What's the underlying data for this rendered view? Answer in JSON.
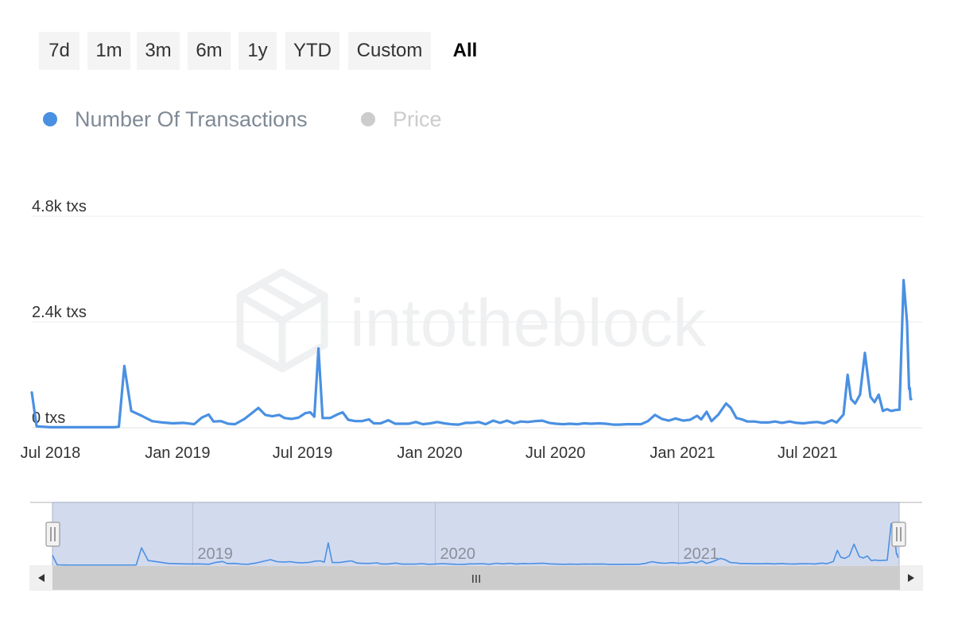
{
  "range_selector": {
    "buttons": [
      "7d",
      "1m",
      "3m",
      "6m",
      "1y",
      "YTD",
      "Custom",
      "All"
    ],
    "active": "All"
  },
  "legend": [
    {
      "label": "Number Of Transactions",
      "color": "#4a90e2",
      "active": true
    },
    {
      "label": "Price",
      "color": "#cccccc",
      "active": false
    }
  ],
  "watermark": "intotheblock",
  "navigator": {
    "labels": [
      "2019",
      "2020",
      "2021"
    ],
    "scroll_grip": "III"
  },
  "chart_data": {
    "type": "line",
    "x_axis": {
      "type": "datetime",
      "range": [
        "2018-06-04",
        "2021-11-29"
      ],
      "tick_labels": [
        "Jul 2018",
        "Jan 2019",
        "Jul 2019",
        "Jan 2020",
        "Jul 2020",
        "Jan 2021",
        "Jul 2021"
      ]
    },
    "y_axis": {
      "range": [
        0,
        4800
      ],
      "tick_values": [
        0,
        2400,
        4800
      ],
      "tick_labels": [
        "0 txs",
        "2.4k txs",
        "4.8k txs"
      ]
    },
    "grid": {
      "horizontal": true,
      "vertical": false
    },
    "series": [
      {
        "name": "Number Of Transactions",
        "color": "#4a90e2",
        "points": [
          [
            "2018-06-04",
            800
          ],
          [
            "2018-06-11",
            30
          ],
          [
            "2018-07-01",
            10
          ],
          [
            "2018-08-01",
            10
          ],
          [
            "2018-09-01",
            10
          ],
          [
            "2018-10-01",
            10
          ],
          [
            "2018-10-08",
            20
          ],
          [
            "2018-10-16",
            1400
          ],
          [
            "2018-10-26",
            380
          ],
          [
            "2018-11-10",
            270
          ],
          [
            "2018-11-25",
            150
          ],
          [
            "2018-12-10",
            120
          ],
          [
            "2018-12-25",
            100
          ],
          [
            "2019-01-10",
            110
          ],
          [
            "2019-01-25",
            80
          ],
          [
            "2019-02-05",
            230
          ],
          [
            "2019-02-15",
            300
          ],
          [
            "2019-02-22",
            140
          ],
          [
            "2019-03-05",
            150
          ],
          [
            "2019-03-15",
            90
          ],
          [
            "2019-03-25",
            80
          ],
          [
            "2019-04-08",
            200
          ],
          [
            "2019-04-20",
            350
          ],
          [
            "2019-04-28",
            450
          ],
          [
            "2019-05-08",
            290
          ],
          [
            "2019-05-18",
            260
          ],
          [
            "2019-05-28",
            290
          ],
          [
            "2019-06-05",
            220
          ],
          [
            "2019-06-15",
            200
          ],
          [
            "2019-06-25",
            230
          ],
          [
            "2019-07-05",
            330
          ],
          [
            "2019-07-12",
            350
          ],
          [
            "2019-07-18",
            250
          ],
          [
            "2019-07-24",
            1800
          ],
          [
            "2019-07-30",
            220
          ],
          [
            "2019-08-10",
            220
          ],
          [
            "2019-08-20",
            300
          ],
          [
            "2019-08-28",
            350
          ],
          [
            "2019-09-05",
            180
          ],
          [
            "2019-09-15",
            150
          ],
          [
            "2019-09-25",
            150
          ],
          [
            "2019-10-05",
            190
          ],
          [
            "2019-10-12",
            100
          ],
          [
            "2019-10-22",
            100
          ],
          [
            "2019-11-02",
            170
          ],
          [
            "2019-11-12",
            90
          ],
          [
            "2019-11-22",
            90
          ],
          [
            "2019-12-02",
            90
          ],
          [
            "2019-12-12",
            130
          ],
          [
            "2019-12-22",
            80
          ],
          [
            "2020-01-02",
            100
          ],
          [
            "2020-01-12",
            130
          ],
          [
            "2020-01-22",
            100
          ],
          [
            "2020-02-01",
            80
          ],
          [
            "2020-02-12",
            70
          ],
          [
            "2020-02-22",
            110
          ],
          [
            "2020-03-02",
            110
          ],
          [
            "2020-03-12",
            130
          ],
          [
            "2020-03-22",
            80
          ],
          [
            "2020-04-02",
            160
          ],
          [
            "2020-04-12",
            110
          ],
          [
            "2020-04-22",
            160
          ],
          [
            "2020-05-02",
            100
          ],
          [
            "2020-05-12",
            140
          ],
          [
            "2020-05-22",
            130
          ],
          [
            "2020-06-02",
            150
          ],
          [
            "2020-06-12",
            160
          ],
          [
            "2020-06-22",
            110
          ],
          [
            "2020-07-02",
            90
          ],
          [
            "2020-07-12",
            80
          ],
          [
            "2020-07-22",
            90
          ],
          [
            "2020-08-02",
            80
          ],
          [
            "2020-08-12",
            100
          ],
          [
            "2020-08-22",
            90
          ],
          [
            "2020-09-02",
            100
          ],
          [
            "2020-09-12",
            90
          ],
          [
            "2020-09-22",
            70
          ],
          [
            "2020-10-02",
            70
          ],
          [
            "2020-10-12",
            80
          ],
          [
            "2020-10-22",
            80
          ],
          [
            "2020-11-02",
            80
          ],
          [
            "2020-11-12",
            150
          ],
          [
            "2020-11-22",
            290
          ],
          [
            "2020-12-02",
            200
          ],
          [
            "2020-12-12",
            160
          ],
          [
            "2020-12-22",
            210
          ],
          [
            "2021-01-02",
            160
          ],
          [
            "2021-01-12",
            180
          ],
          [
            "2021-01-22",
            270
          ],
          [
            "2021-01-28",
            190
          ],
          [
            "2021-02-05",
            360
          ],
          [
            "2021-02-12",
            150
          ],
          [
            "2021-02-22",
            300
          ],
          [
            "2021-03-05",
            550
          ],
          [
            "2021-03-12",
            450
          ],
          [
            "2021-03-20",
            220
          ],
          [
            "2021-03-28",
            190
          ],
          [
            "2021-04-05",
            140
          ],
          [
            "2021-04-15",
            140
          ],
          [
            "2021-04-25",
            120
          ],
          [
            "2021-05-05",
            120
          ],
          [
            "2021-05-15",
            140
          ],
          [
            "2021-05-25",
            110
          ],
          [
            "2021-06-05",
            140
          ],
          [
            "2021-06-15",
            110
          ],
          [
            "2021-06-25",
            100
          ],
          [
            "2021-07-05",
            120
          ],
          [
            "2021-07-15",
            130
          ],
          [
            "2021-07-25",
            100
          ],
          [
            "2021-08-05",
            170
          ],
          [
            "2021-08-12",
            120
          ],
          [
            "2021-08-22",
            300
          ],
          [
            "2021-08-28",
            1200
          ],
          [
            "2021-09-02",
            650
          ],
          [
            "2021-09-08",
            550
          ],
          [
            "2021-09-15",
            750
          ],
          [
            "2021-09-22",
            1700
          ],
          [
            "2021-09-30",
            700
          ],
          [
            "2021-10-06",
            580
          ],
          [
            "2021-10-12",
            750
          ],
          [
            "2021-10-18",
            380
          ],
          [
            "2021-10-24",
            420
          ],
          [
            "2021-10-30",
            380
          ],
          [
            "2021-11-05",
            400
          ],
          [
            "2021-11-11",
            410
          ],
          [
            "2021-11-17",
            3350
          ],
          [
            "2021-11-22",
            2400
          ],
          [
            "2021-11-25",
            880
          ],
          [
            "2021-11-26",
            900
          ],
          [
            "2021-11-27",
            650
          ],
          [
            "2021-11-28",
            650
          ]
        ]
      }
    ]
  }
}
